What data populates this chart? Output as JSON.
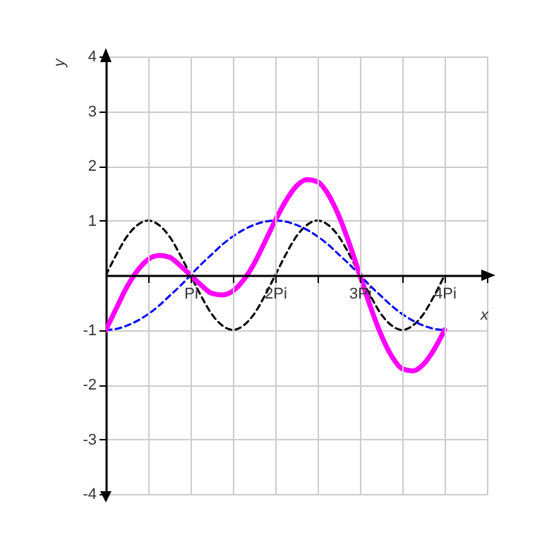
{
  "chart_data": {
    "type": "line",
    "xlabel": "x",
    "ylabel": "y",
    "x": [
      0,
      0.125,
      0.25,
      0.375,
      0.5,
      0.625,
      0.75,
      0.875,
      1,
      1.125,
      1.25,
      1.375,
      1.5,
      1.625,
      1.75,
      1.875,
      2,
      2.125,
      2.25,
      2.375,
      2.5,
      2.625,
      2.75,
      2.875,
      3,
      3.125,
      3.25,
      3.375,
      3.5,
      3.625,
      3.75,
      3.875,
      4
    ],
    "series": [
      {
        "color": "#000000",
        "line_style": "dashed",
        "values": [
          0,
          0.38,
          0.71,
          0.92,
          1,
          0.92,
          0.71,
          0.38,
          0,
          -0.38,
          -0.71,
          -0.92,
          -1,
          -0.92,
          -0.71,
          -0.38,
          0,
          0.38,
          0.71,
          0.92,
          1,
          0.92,
          0.71,
          0.38,
          0,
          -0.38,
          -0.71,
          -0.92,
          -1,
          -0.92,
          -0.71,
          -0.38,
          0
        ]
      },
      {
        "color": "#0000ff",
        "line_style": "dashed",
        "values": [
          -1,
          -0.98,
          -0.92,
          -0.83,
          -0.71,
          -0.56,
          -0.38,
          -0.2,
          0,
          0.2,
          0.38,
          0.56,
          0.71,
          0.83,
          0.92,
          0.98,
          1,
          0.98,
          0.92,
          0.83,
          0.71,
          0.56,
          0.38,
          0.2,
          0,
          -0.2,
          -0.38,
          -0.56,
          -0.71,
          -0.83,
          -0.92,
          -0.98,
          -1
        ]
      },
      {
        "color": "#ff00ff",
        "line_style": "solid",
        "values": [
          -1,
          -0.6,
          -0.21,
          0.09,
          0.29,
          0.36,
          0.33,
          0.18,
          0,
          -0.18,
          -0.33,
          -0.36,
          -0.29,
          -0.09,
          0.21,
          0.6,
          1,
          1.36,
          1.63,
          1.75,
          1.71,
          1.48,
          1.09,
          0.58,
          0,
          -0.58,
          -1.09,
          -1.48,
          -1.71,
          -1.75,
          -1.63,
          -1.36,
          -1
        ]
      }
    ],
    "xlim": [
      0,
      4.5
    ],
    "xticks": [
      {
        "value": 0.5,
        "label": null
      },
      {
        "value": 1,
        "label": "Pi"
      },
      {
        "value": 1.5,
        "label": null
      },
      {
        "value": 2,
        "label": "2Pi"
      },
      {
        "value": 2.5,
        "label": null
      },
      {
        "value": 3,
        "label": "3Pi"
      },
      {
        "value": 3.5,
        "label": null
      },
      {
        "value": 4,
        "label": "4Pi"
      },
      {
        "value": 4.5,
        "label": null
      }
    ],
    "ylim": [
      -4,
      4
    ],
    "yticks": [
      -4,
      -3,
      -2,
      -1,
      1,
      2,
      3,
      4
    ],
    "grid": true
  }
}
